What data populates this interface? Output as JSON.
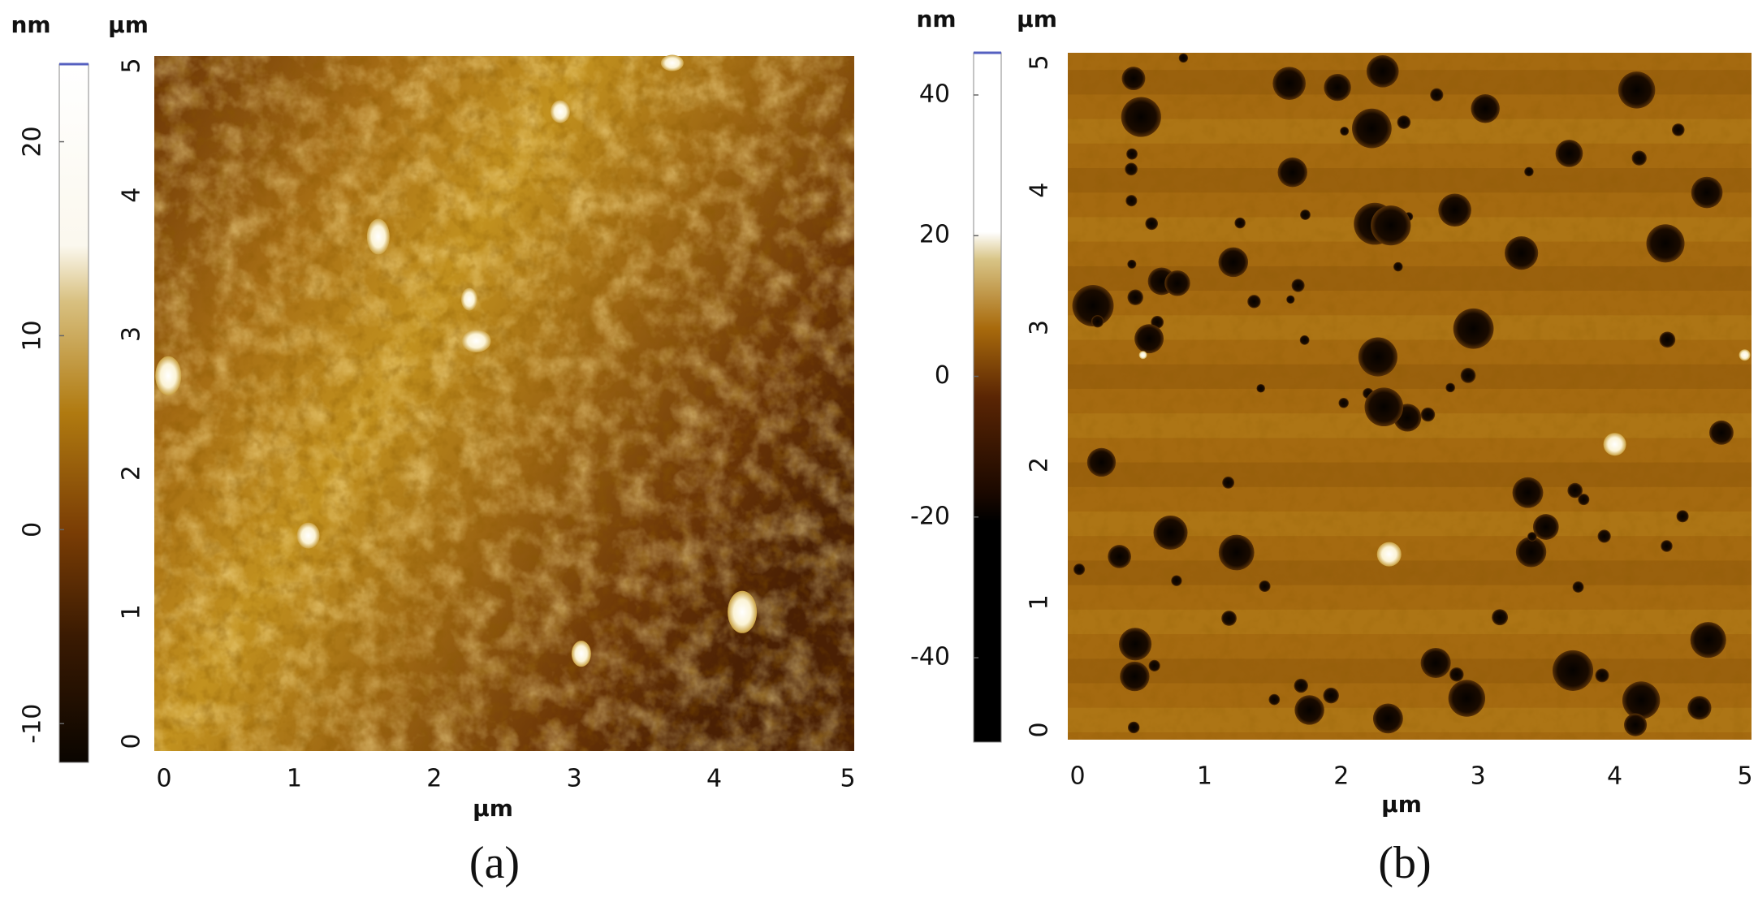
{
  "chart_data": [
    {
      "type": "afm-image",
      "colorbar_unit": "nm",
      "y_unit": "µm",
      "x_label": "µm",
      "caption": "(a)",
      "xlim": [
        0,
        5
      ],
      "ylim": [
        0,
        5
      ],
      "xticks": [
        0,
        1,
        2,
        3,
        4,
        5
      ],
      "yticks": [
        0,
        1,
        2,
        3,
        4,
        5
      ],
      "colorbar_lim": [
        -12,
        24
      ],
      "colorbar_ticks": [
        -10,
        0,
        10,
        20
      ]
    },
    {
      "type": "afm-image",
      "colorbar_unit": "nm",
      "y_unit": "µm",
      "x_label": "µm",
      "caption": "(b)",
      "xlim": [
        0,
        5
      ],
      "ylim": [
        0,
        5
      ],
      "xticks": [
        0,
        1,
        2,
        3,
        4,
        5
      ],
      "yticks": [
        0,
        1,
        2,
        3,
        4,
        5
      ],
      "colorbar_lim": [
        -52,
        46
      ],
      "colorbar_ticks": [
        -40,
        -20,
        0,
        20,
        40
      ]
    }
  ]
}
